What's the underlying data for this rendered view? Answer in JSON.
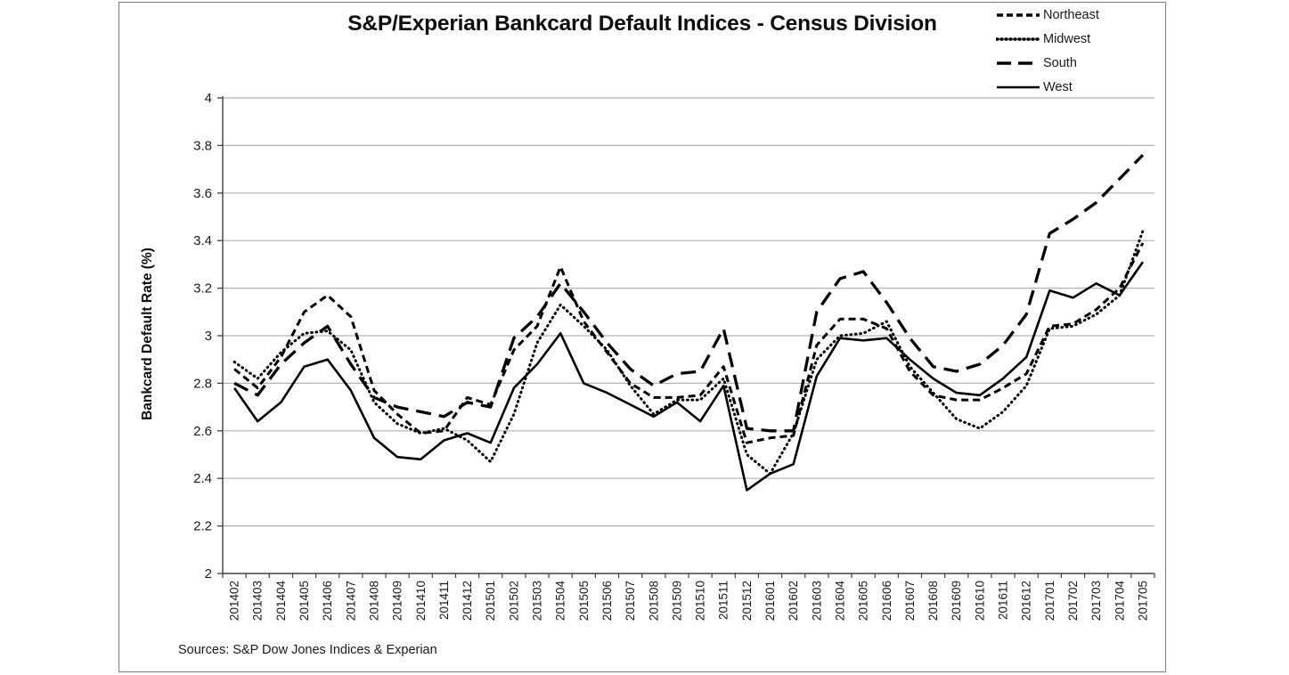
{
  "chart_data": {
    "type": "line",
    "title": "S&P/Experian Bankcard Default Indices - Census Division",
    "xlabel": "",
    "ylabel": "Bankcard Default Rate (%)",
    "source_note": "Sources: S&P Dow Jones Indices & Experian",
    "ylim": [
      2,
      4
    ],
    "ytick_step": 0.2,
    "y_tick_labels": [
      "2",
      "2.2",
      "2.4",
      "2.6",
      "2.8",
      "3",
      "3.2",
      "3.4",
      "3.6",
      "3.8",
      "4"
    ],
    "grid": true,
    "legend_position": "top-right",
    "colors": {
      "series": "#000000",
      "grid": "#b3b3b3",
      "axis": "#404040",
      "frame_border": "#7f7f7f",
      "background": "#ffffff"
    },
    "categories": [
      "201402",
      "201403",
      "201404",
      "201405",
      "201406",
      "201407",
      "201408",
      "201409",
      "201410",
      "201411",
      "201412",
      "201501",
      "201502",
      "201503",
      "201504",
      "201505",
      "201506",
      "201507",
      "201508",
      "201509",
      "201510",
      "201511",
      "201512",
      "201601",
      "201602",
      "201603",
      "201604",
      "201605",
      "201606",
      "201607",
      "201608",
      "201609",
      "201610",
      "201611",
      "201612",
      "201701",
      "201702",
      "201703",
      "201704",
      "201705"
    ],
    "series": [
      {
        "name": "Northeast",
        "style": "dashed",
        "color": "#000000",
        "values": [
          2.86,
          2.78,
          2.91,
          3.1,
          3.17,
          3.08,
          2.77,
          2.67,
          2.59,
          2.6,
          2.74,
          2.71,
          2.94,
          3.04,
          3.29,
          3.06,
          2.93,
          2.8,
          2.74,
          2.74,
          2.75,
          2.87,
          2.55,
          2.57,
          2.58,
          2.96,
          3.07,
          3.07,
          3.03,
          2.85,
          2.75,
          2.73,
          2.73,
          2.78,
          2.84,
          3.04,
          3.05,
          3.11,
          3.2,
          3.39
        ]
      },
      {
        "name": "Midwest",
        "style": "dotted",
        "color": "#000000",
        "values": [
          2.89,
          2.82,
          2.93,
          3.01,
          3.02,
          2.94,
          2.72,
          2.63,
          2.59,
          2.61,
          2.56,
          2.47,
          2.67,
          2.97,
          3.13,
          3.04,
          2.94,
          2.79,
          2.67,
          2.73,
          2.73,
          2.82,
          2.5,
          2.42,
          2.59,
          2.9,
          3.0,
          3.01,
          3.06,
          2.87,
          2.76,
          2.65,
          2.61,
          2.68,
          2.79,
          3.03,
          3.04,
          3.09,
          3.17,
          3.44
        ]
      },
      {
        "name": "South",
        "style": "long-dash",
        "color": "#000000",
        "values": [
          2.8,
          2.75,
          2.88,
          2.97,
          3.04,
          2.88,
          2.74,
          2.7,
          2.68,
          2.66,
          2.72,
          2.7,
          2.99,
          3.08,
          3.22,
          3.1,
          2.97,
          2.86,
          2.79,
          2.84,
          2.85,
          3.03,
          2.61,
          2.6,
          2.6,
          3.1,
          3.24,
          3.27,
          3.14,
          2.99,
          2.87,
          2.85,
          2.88,
          2.96,
          3.09,
          3.43,
          3.49,
          3.56,
          3.66,
          3.76
        ]
      },
      {
        "name": "West",
        "style": "solid",
        "color": "#000000",
        "values": [
          2.78,
          2.64,
          2.72,
          2.87,
          2.9,
          2.77,
          2.57,
          2.49,
          2.48,
          2.56,
          2.59,
          2.55,
          2.78,
          2.88,
          3.01,
          2.8,
          2.76,
          2.71,
          2.66,
          2.72,
          2.64,
          2.79,
          2.35,
          2.42,
          2.46,
          2.83,
          2.99,
          2.98,
          2.99,
          2.9,
          2.82,
          2.76,
          2.75,
          2.82,
          2.91,
          3.19,
          3.16,
          3.22,
          3.17,
          3.31
        ]
      }
    ]
  }
}
